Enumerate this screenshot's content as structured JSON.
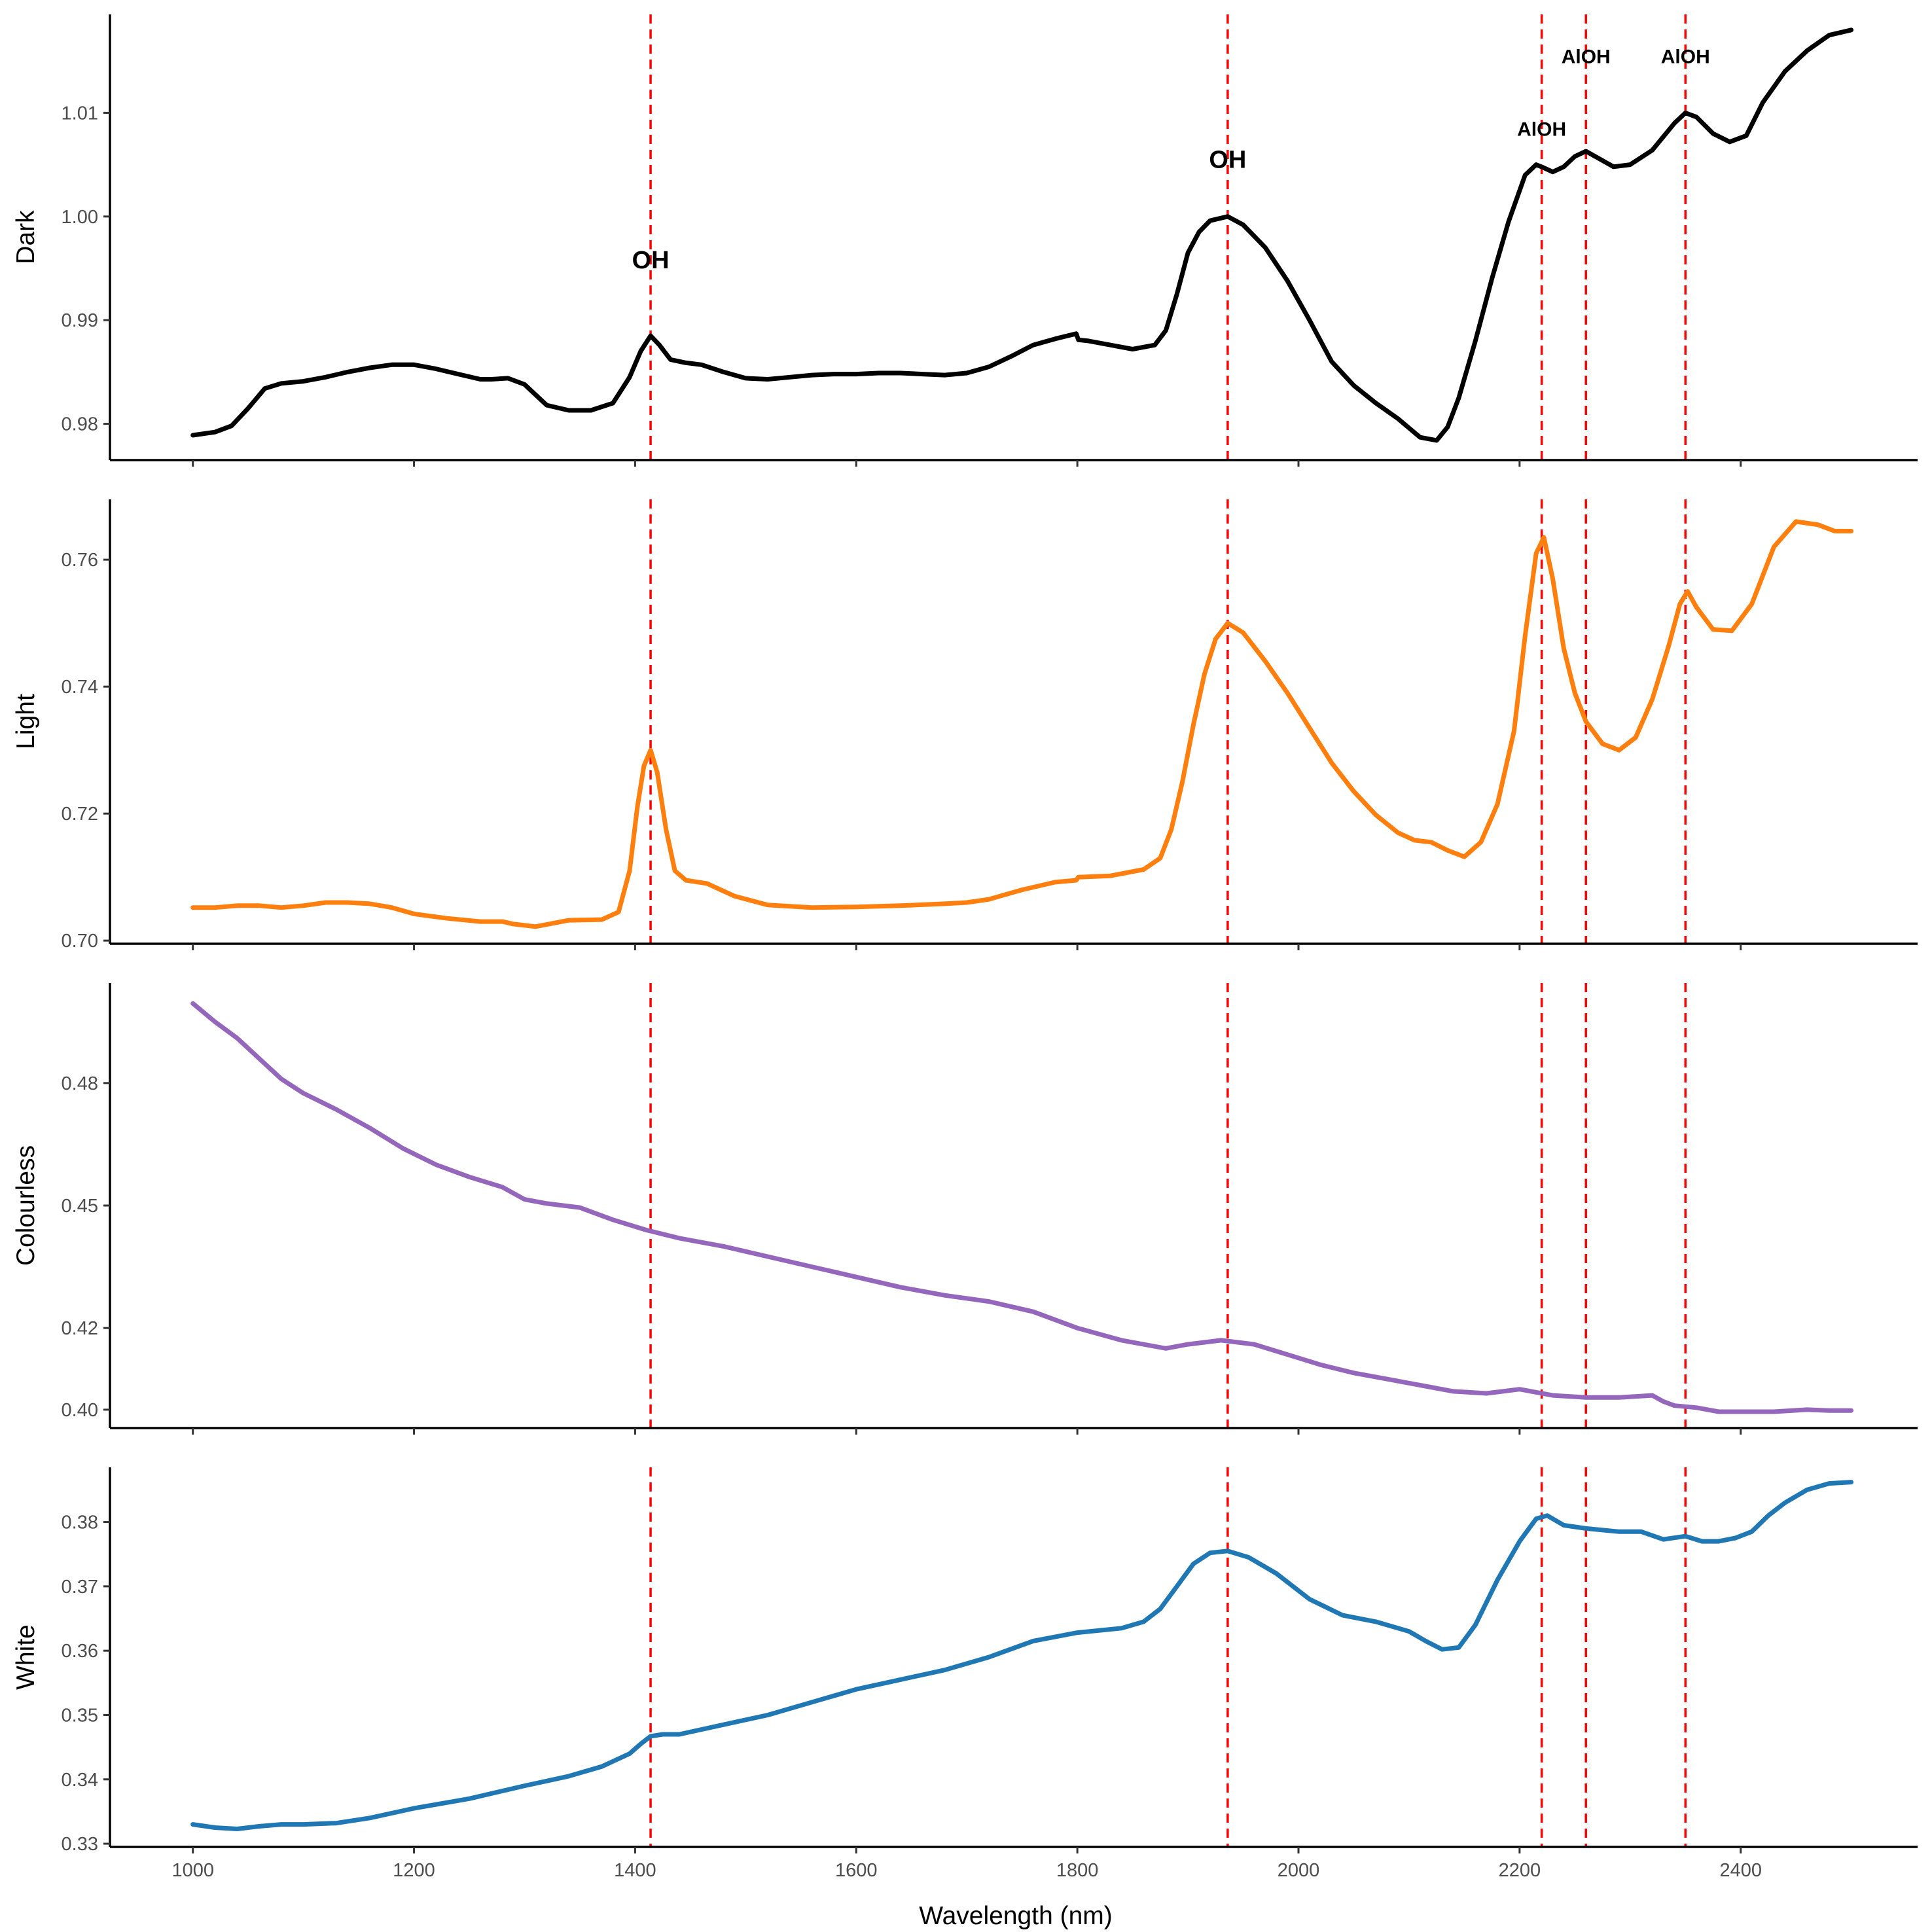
{
  "chart_data": {
    "type": "line",
    "xlabel": "Wavelength (nm)",
    "xlim": [
      925,
      2560
    ],
    "x_ticks": [
      1000,
      1200,
      1400,
      1600,
      1800,
      2000,
      2200,
      2400
    ],
    "x_tick_labels": [
      "1000",
      "1200",
      "1400",
      "1600",
      "1800",
      "2000",
      "2200",
      "2400"
    ],
    "reference_lines": {
      "x": [
        1414,
        1936,
        2220,
        2260,
        2350
      ],
      "color": "#ff0000",
      "style": "dashed"
    },
    "panels": [
      {
        "ylabel": "Dark",
        "color": "#000000",
        "ylim": [
          0.9765,
          1.0195
        ],
        "y_ticks": [
          0.98,
          0.99,
          1.0,
          1.01
        ],
        "y_tick_labels": [
          "0.98",
          "0.99",
          "1.00",
          "1.01"
        ],
        "annotations": [
          {
            "text": "OH",
            "x": 1414,
            "y": 0.995,
            "size": "big"
          },
          {
            "text": "OH",
            "x": 1936,
            "y": 1.0047,
            "size": "big"
          },
          {
            "text": "AlOH",
            "x": 2220,
            "y": 1.0078,
            "size": "small"
          },
          {
            "text": "AlOH",
            "x": 2260,
            "y": 1.0148,
            "size": "small"
          },
          {
            "text": "AlOH",
            "x": 2350,
            "y": 1.0148,
            "size": "small"
          }
        ],
        "series": [
          {
            "x": [
              1000,
              1020,
              1035,
              1050,
              1065,
              1080,
              1100,
              1120,
              1140,
              1160,
              1180,
              1200,
              1220,
              1240,
              1260,
              1270,
              1285,
              1300,
              1320,
              1340,
              1360,
              1380,
              1395,
              1405,
              1414,
              1422,
              1432,
              1445,
              1460,
              1480,
              1500,
              1520,
              1540,
              1560,
              1580,
              1600,
              1620,
              1640,
              1660,
              1680,
              1700,
              1720,
              1740,
              1760,
              1780,
              1799,
              1801,
              1810,
              1830,
              1850,
              1870,
              1880,
              1890,
              1900,
              1910,
              1920,
              1936,
              1950,
              1970,
              1990,
              2010,
              2030,
              2050,
              2070,
              2090,
              2110,
              2125,
              2135,
              2145,
              2160,
              2175,
              2190,
              2205,
              2215,
              2222,
              2230,
              2240,
              2250,
              2260,
              2270,
              2285,
              2300,
              2320,
              2340,
              2350,
              2360,
              2375,
              2390,
              2405,
              2420,
              2440,
              2460,
              2480,
              2500
            ],
            "y": [
              0.9789,
              0.9792,
              0.9798,
              0.9815,
              0.9834,
              0.9839,
              0.9841,
              0.9845,
              0.985,
              0.9854,
              0.9857,
              0.9857,
              0.9853,
              0.9848,
              0.9843,
              0.9843,
              0.9844,
              0.9838,
              0.9818,
              0.9813,
              0.9813,
              0.982,
              0.9845,
              0.987,
              0.9885,
              0.9876,
              0.9862,
              0.9859,
              0.9857,
              0.985,
              0.9844,
              0.9843,
              0.9845,
              0.9847,
              0.9848,
              0.9848,
              0.9849,
              0.9849,
              0.9848,
              0.9847,
              0.9849,
              0.9855,
              0.9865,
              0.9876,
              0.9882,
              0.9887,
              0.9881,
              0.988,
              0.9876,
              0.9872,
              0.9876,
              0.989,
              0.9925,
              0.9965,
              0.9985,
              0.9996,
              1.0,
              0.9992,
              0.997,
              0.9938,
              0.99,
              0.986,
              0.9837,
              0.982,
              0.9805,
              0.9787,
              0.9784,
              0.9797,
              0.9825,
              0.988,
              0.994,
              0.9995,
              1.004,
              1.005,
              1.0047,
              1.0043,
              1.0048,
              1.0058,
              1.0063,
              1.0057,
              1.0048,
              1.005,
              1.0064,
              1.009,
              1.01,
              1.0096,
              1.008,
              1.0072,
              1.0078,
              1.011,
              1.014,
              1.016,
              1.0175,
              1.018
            ]
          }
        ]
      },
      {
        "ylabel": "Light",
        "color": "#ff7f0e",
        "ylim": [
          0.6995,
          0.7695
        ],
        "y_ticks": [
          0.7,
          0.72,
          0.74,
          0.76
        ],
        "y_tick_labels": [
          "0.70",
          "0.72",
          "0.74",
          "0.76"
        ],
        "annotations": [],
        "series": [
          {
            "x": [
              1000,
              1020,
              1040,
              1060,
              1080,
              1100,
              1120,
              1140,
              1160,
              1180,
              1200,
              1230,
              1260,
              1280,
              1290,
              1310,
              1340,
              1370,
              1385,
              1395,
              1402,
              1408,
              1414,
              1420,
              1428,
              1436,
              1446,
              1465,
              1490,
              1520,
              1560,
              1600,
              1640,
              1680,
              1700,
              1720,
              1750,
              1780,
              1799,
              1801,
              1830,
              1860,
              1875,
              1885,
              1895,
              1905,
              1915,
              1925,
              1936,
              1950,
              1970,
              1990,
              2010,
              2030,
              2050,
              2070,
              2090,
              2105,
              2120,
              2135,
              2150,
              2165,
              2180,
              2195,
              2205,
              2215,
              2222,
              2230,
              2240,
              2250,
              2260,
              2275,
              2290,
              2305,
              2320,
              2335,
              2345,
              2352,
              2360,
              2375,
              2392,
              2410,
              2430,
              2450,
              2470,
              2485,
              2500
            ],
            "y": [
              0.7052,
              0.7052,
              0.7055,
              0.7055,
              0.7052,
              0.7055,
              0.706,
              0.706,
              0.7058,
              0.7052,
              0.7042,
              0.7035,
              0.703,
              0.703,
              0.7026,
              0.7022,
              0.7032,
              0.7033,
              0.7045,
              0.711,
              0.721,
              0.7275,
              0.73,
              0.7265,
              0.7175,
              0.711,
              0.7095,
              0.709,
              0.707,
              0.7056,
              0.7052,
              0.7053,
              0.7055,
              0.7058,
              0.706,
              0.7065,
              0.708,
              0.7092,
              0.7095,
              0.71,
              0.7102,
              0.7112,
              0.713,
              0.7175,
              0.725,
              0.734,
              0.742,
              0.7475,
              0.75,
              0.7485,
              0.744,
              0.739,
              0.7335,
              0.728,
              0.7235,
              0.7198,
              0.717,
              0.7158,
              0.7155,
              0.7142,
              0.7132,
              0.7155,
              0.7215,
              0.733,
              0.748,
              0.761,
              0.7635,
              0.757,
              0.746,
              0.739,
              0.7345,
              0.731,
              0.73,
              0.732,
              0.738,
              0.7465,
              0.753,
              0.755,
              0.7525,
              0.749,
              0.7488,
              0.753,
              0.762,
              0.766,
              0.7655,
              0.7645,
              0.7645
            ]
          }
        ]
      },
      {
        "ylabel": "Colourless",
        "color": "#9467bd",
        "ylim": [
          0.3955,
          0.5045
        ],
        "y_ticks": [
          0.4,
          0.42,
          0.45,
          0.48
        ],
        "y_tick_labels": [
          "0.40",
          "0.42",
          "0.45",
          "0.48"
        ],
        "annotations": [],
        "series": [
          {
            "x": [
              1000,
              1020,
              1040,
              1060,
              1080,
              1100,
              1130,
              1160,
              1190,
              1220,
              1250,
              1280,
              1300,
              1320,
              1350,
              1380,
              1410,
              1440,
              1480,
              1520,
              1560,
              1600,
              1640,
              1680,
              1720,
              1760,
              1800,
              1840,
              1880,
              1900,
              1930,
              1960,
              1990,
              2020,
              2050,
              2080,
              2110,
              2140,
              2170,
              2200,
              2230,
              2260,
              2290,
              2320,
              2330,
              2340,
              2360,
              2380,
              2400,
              2430,
              2460,
              2480,
              2500
            ],
            "y": [
              0.4995,
              0.495,
              0.491,
              0.486,
              0.481,
              0.4775,
              0.4735,
              0.469,
              0.464,
              0.46,
              0.457,
              0.4545,
              0.4515,
              0.4505,
              0.4495,
              0.4465,
              0.444,
              0.442,
              0.44,
              0.4375,
              0.435,
              0.4325,
              0.43,
              0.428,
              0.4265,
              0.424,
              0.42,
              0.417,
              0.415,
              0.416,
              0.417,
              0.416,
              0.4135,
              0.411,
              0.409,
              0.4075,
              0.406,
              0.4045,
              0.404,
              0.405,
              0.4035,
              0.403,
              0.403,
              0.4035,
              0.402,
              0.401,
              0.4005,
              0.3995,
              0.3995,
              0.3995,
              0.4,
              0.3998,
              0.3998
            ]
          }
        ]
      },
      {
        "ylabel": "White",
        "color": "#1f77b4",
        "ylim": [
          0.3295,
          0.3885
        ],
        "y_ticks": [
          0.33,
          0.34,
          0.35,
          0.36,
          0.37,
          0.38
        ],
        "y_tick_labels": [
          "0.33",
          "0.34",
          "0.35",
          "0.36",
          "0.37",
          "0.38"
        ],
        "annotations": [],
        "series": [
          {
            "x": [
              1000,
              1020,
              1040,
              1060,
              1080,
              1100,
              1130,
              1160,
              1200,
              1250,
              1300,
              1340,
              1370,
              1395,
              1405,
              1414,
              1425,
              1440,
              1480,
              1520,
              1560,
              1600,
              1640,
              1680,
              1720,
              1760,
              1800,
              1840,
              1860,
              1875,
              1890,
              1905,
              1920,
              1936,
              1955,
              1980,
              2010,
              2040,
              2070,
              2100,
              2115,
              2130,
              2145,
              2160,
              2180,
              2200,
              2215,
              2225,
              2240,
              2260,
              2290,
              2310,
              2330,
              2350,
              2365,
              2380,
              2395,
              2410,
              2425,
              2440,
              2460,
              2480,
              2500
            ],
            "y": [
              0.333,
              0.3325,
              0.3323,
              0.3327,
              0.333,
              0.333,
              0.3332,
              0.334,
              0.3355,
              0.337,
              0.339,
              0.3405,
              0.342,
              0.344,
              0.3455,
              0.3467,
              0.347,
              0.347,
              0.3485,
              0.35,
              0.352,
              0.354,
              0.3555,
              0.357,
              0.359,
              0.3615,
              0.3628,
              0.3635,
              0.3645,
              0.3665,
              0.37,
              0.3735,
              0.3752,
              0.3755,
              0.3745,
              0.372,
              0.368,
              0.3655,
              0.3645,
              0.363,
              0.3615,
              0.3602,
              0.3605,
              0.364,
              0.371,
              0.377,
              0.3805,
              0.381,
              0.3795,
              0.379,
              0.3785,
              0.3785,
              0.3773,
              0.3778,
              0.377,
              0.377,
              0.3775,
              0.3785,
              0.381,
              0.383,
              0.385,
              0.386,
              0.3862
            ]
          }
        ]
      }
    ]
  }
}
